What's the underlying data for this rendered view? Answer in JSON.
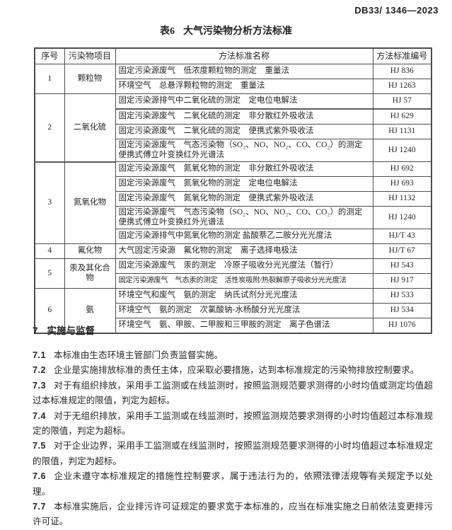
{
  "page": {
    "doc_code": "DB33/ 1346—2023"
  },
  "table": {
    "title_label": "表6",
    "title_text": "大气污染物分析方法标准",
    "headers": [
      "序号",
      "污染物项目",
      "方法标准名称",
      "方法标准编号"
    ],
    "groups": [
      {
        "no": "1",
        "pollutant": "颗粒物",
        "entries": [
          {
            "name": "固定污染源废气　低浓度颗粒物的测定　重量法",
            "code": "HJ 836"
          },
          {
            "name": "环境空气　总悬浮颗粒物的测定　重量法",
            "code": "HJ 1263"
          }
        ]
      },
      {
        "no": "2",
        "pollutant": "二氧化硫",
        "entries": [
          {
            "name": "固定污染源排气中二氧化硫的测定　定电位电解法",
            "code": "HJ 57",
            "divider": true
          },
          {
            "name": "固定污染源废气　二氧化硫的测定　非分散红外吸收法",
            "code": "HJ 629"
          },
          {
            "name": "固定污染源废气　二氧化硫的测定　便携式紫外吸收法",
            "code": "HJ 1131"
          },
          {
            "name": "固定污染源废气　气态污染物（SO₂、NO、NO₂、CO、CO₂）的测定　便携式傅立叶变换红外光谱法",
            "code": "HJ 1240",
            "tall": true
          }
        ]
      },
      {
        "no": "3",
        "pollutant": "氮氧化物",
        "entries": [
          {
            "name": "固定污染源废气　氮氧化物的测定　非分散红外吸收法",
            "code": "HJ 692"
          },
          {
            "name": "固定污染源废气　氮氧化物的测定　定电位电解法",
            "code": "HJ 693"
          },
          {
            "name": "固定污染源废气　氮氧化物的测定　便携式紫外吸收法",
            "code": "HJ 1132"
          },
          {
            "name": "固定污染源废气　气态污染物（SO₂、NO、NO₂、CO、CO₂）的测定　便携式傅立叶变换红外光谱法",
            "code": "HJ 1240",
            "tall": true
          },
          {
            "name": "固定污染源排气中氮氧化物的测定 盐酸萘乙二胺分光光度法",
            "code": "HJ/T 43"
          }
        ]
      },
      {
        "no": "4",
        "pollutant": "氟化物",
        "entries": [
          {
            "name": "大气固定污染源　氟化物的测定　离子选择电极法",
            "code": "HJ/T 67"
          }
        ]
      },
      {
        "no": "5",
        "pollutant": "汞及其化合物",
        "entries": [
          {
            "name": "固定污染源废气　汞的测定　冷原子吸收分光光度法（暂行）",
            "code": "HJ 543"
          },
          {
            "name": "固定污染源废气　气态汞的测定　活性炭吸附/热裂解原子吸收分光光度法",
            "code": "HJ 917",
            "fit": true
          }
        ]
      },
      {
        "no": "6",
        "pollutant": "氨",
        "entries": [
          {
            "name": "环境空气和废气　氨的测定　纳氏试剂分光光度法",
            "code": "HJ 533"
          },
          {
            "name": "环境空气　氨的测定　次氯酸钠-水杨酸分光光度法",
            "code": "HJ 534"
          },
          {
            "name": "环境空气　氨、甲胺、二甲胺和三甲胺的测定　离子色谱法",
            "code": "HJ 1076"
          }
        ]
      }
    ]
  },
  "section": {
    "heading_no": "7",
    "heading_label": "实施与监督",
    "clauses": [
      {
        "no": "7.1",
        "text": "本标准由生态环境主管部门负责监督实施。"
      },
      {
        "no": "7.2",
        "text": "企业是实施排放标准的责任主体，应采取必要措施，达到本标准规定的污染物排放控制要求。"
      },
      {
        "no": "7.3",
        "text": "对于有组织排放，采用手工监测或在线监测时，按照监测规范要求测得的小时均值或测定均值超过本标准规定的限值，判定为超标。"
      },
      {
        "no": "7.4",
        "text": "对于无组织排放，采用手工监测或在线监测时，按照监测规范要求测得的小时均值超过本标准规定的限值，判定为超标。"
      },
      {
        "no": "7.5",
        "text": "对于企业边界，采用手工监测或在线监测时，按照监测规范要求测得的小时均值超过本标准规定的限值，判定为超标。"
      },
      {
        "no": "7.6",
        "text": "企业未遵守本标准规定的措施性控制要求，属于违法行为的，依照法律法规等有关规定予以处理。"
      },
      {
        "no": "7.7",
        "text": "本标准实施后，企业排污许可证规定的要求宽于本标准的，应当在标准实施之日前依法变更排污许可证。"
      }
    ]
  },
  "watermark": {
    "text": "www.doczj.com"
  },
  "colors": {
    "border": "#4d4d4d",
    "text": "#262626",
    "watermark": "#8f9499"
  }
}
